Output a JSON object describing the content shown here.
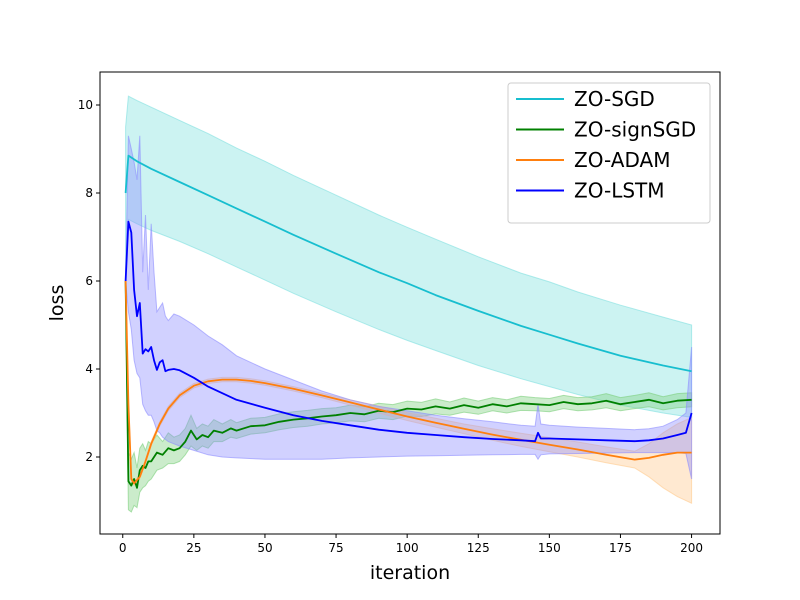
{
  "chart_data": {
    "type": "line",
    "xlabel": "iteration",
    "ylabel": "loss",
    "xlim": [
      -8,
      210
    ],
    "ylim": [
      0.25,
      10.75
    ],
    "xticks": [
      0,
      25,
      50,
      75,
      100,
      125,
      150,
      175,
      200
    ],
    "yticks": [
      2,
      4,
      6,
      8,
      10
    ],
    "legend_position": "upper-right",
    "grid": false,
    "series": [
      {
        "name": "ZO-SGD",
        "color": "#17becf",
        "band_color": "#7fe0df",
        "x": [
          1,
          2,
          5,
          10,
          20,
          30,
          40,
          50,
          60,
          75,
          90,
          100,
          110,
          125,
          140,
          150,
          160,
          175,
          190,
          200
        ],
        "values": [
          8.0,
          8.85,
          8.72,
          8.55,
          8.25,
          7.95,
          7.65,
          7.35,
          7.05,
          6.62,
          6.2,
          5.95,
          5.68,
          5.32,
          4.98,
          4.78,
          4.58,
          4.3,
          4.08,
          3.95
        ],
        "lower": [
          6.0,
          7.4,
          7.3,
          7.15,
          6.9,
          6.62,
          6.32,
          6.02,
          5.72,
          5.3,
          4.9,
          4.65,
          4.42,
          4.08,
          3.78,
          3.6,
          3.42,
          3.18,
          3.0,
          2.9
        ],
        "upper": [
          9.5,
          10.2,
          10.1,
          9.95,
          9.65,
          9.35,
          9.02,
          8.72,
          8.4,
          7.95,
          7.5,
          7.22,
          6.95,
          6.55,
          6.18,
          5.98,
          5.75,
          5.45,
          5.18,
          5.0
        ]
      },
      {
        "name": "ZO-signSGD",
        "color": "#008000",
        "band_color": "#7ccf7c",
        "x": [
          1,
          2,
          3,
          4,
          5,
          6,
          7,
          8,
          9,
          10,
          12,
          14,
          16,
          18,
          20,
          22,
          24,
          26,
          28,
          30,
          32,
          35,
          38,
          40,
          45,
          50,
          55,
          60,
          65,
          70,
          75,
          80,
          85,
          90,
          95,
          100,
          105,
          110,
          115,
          120,
          125,
          130,
          135,
          140,
          145,
          150,
          155,
          160,
          165,
          170,
          175,
          180,
          185,
          190,
          195,
          200
        ],
        "values": [
          6.0,
          1.45,
          1.35,
          1.5,
          1.3,
          1.7,
          1.8,
          1.75,
          1.9,
          1.9,
          2.1,
          2.05,
          2.2,
          2.15,
          2.2,
          2.35,
          2.6,
          2.4,
          2.5,
          2.45,
          2.6,
          2.55,
          2.65,
          2.6,
          2.7,
          2.72,
          2.8,
          2.85,
          2.88,
          2.92,
          2.95,
          3.0,
          2.97,
          3.05,
          3.02,
          3.1,
          3.08,
          3.15,
          3.1,
          3.18,
          3.12,
          3.2,
          3.15,
          3.22,
          3.2,
          3.18,
          3.25,
          3.2,
          3.22,
          3.28,
          3.2,
          3.25,
          3.3,
          3.22,
          3.28,
          3.3
        ],
        "lower": [
          6.0,
          0.8,
          0.75,
          0.9,
          0.85,
          1.2,
          1.3,
          1.35,
          1.45,
          1.5,
          1.7,
          1.75,
          1.85,
          1.85,
          1.9,
          2.05,
          2.25,
          2.15,
          2.25,
          2.2,
          2.35,
          2.35,
          2.45,
          2.42,
          2.52,
          2.55,
          2.62,
          2.67,
          2.7,
          2.75,
          2.78,
          2.82,
          2.8,
          2.88,
          2.85,
          2.93,
          2.92,
          2.98,
          2.95,
          3.02,
          2.97,
          3.05,
          3.0,
          3.06,
          3.05,
          3.03,
          3.1,
          3.05,
          3.07,
          3.12,
          3.05,
          3.1,
          3.14,
          3.07,
          3.12,
          3.14
        ],
        "upper": [
          6.0,
          2.1,
          1.95,
          2.1,
          1.75,
          2.2,
          2.3,
          2.15,
          2.35,
          2.3,
          2.5,
          2.35,
          2.55,
          2.45,
          2.5,
          2.65,
          2.95,
          2.65,
          2.75,
          2.7,
          2.85,
          2.75,
          2.85,
          2.78,
          2.88,
          2.9,
          2.98,
          3.03,
          3.06,
          3.1,
          3.12,
          3.18,
          3.14,
          3.22,
          3.19,
          3.27,
          3.24,
          3.32,
          3.25,
          3.34,
          3.27,
          3.35,
          3.3,
          3.38,
          3.35,
          3.33,
          3.4,
          3.35,
          3.37,
          3.44,
          3.35,
          3.4,
          3.46,
          3.37,
          3.44,
          3.46
        ]
      },
      {
        "name": "ZO-ADAM",
        "color": "#ff7f0e",
        "band_color": "#ffc98c",
        "x": [
          1,
          2,
          3,
          4,
          6,
          8,
          10,
          13,
          16,
          20,
          25,
          30,
          35,
          40,
          45,
          50,
          60,
          70,
          80,
          90,
          100,
          110,
          120,
          130,
          140,
          150,
          160,
          170,
          180,
          185,
          190,
          195,
          200
        ],
        "values": [
          6.0,
          3.2,
          1.5,
          1.4,
          1.55,
          1.9,
          2.3,
          2.75,
          3.1,
          3.4,
          3.62,
          3.72,
          3.76,
          3.76,
          3.73,
          3.68,
          3.55,
          3.4,
          3.24,
          3.08,
          2.92,
          2.78,
          2.64,
          2.51,
          2.39,
          2.28,
          2.17,
          2.05,
          1.94,
          1.98,
          2.05,
          2.1,
          2.1
        ],
        "lower": [
          6.0,
          3.0,
          1.45,
          1.35,
          1.5,
          1.85,
          2.25,
          2.7,
          3.05,
          3.35,
          3.57,
          3.67,
          3.71,
          3.71,
          3.68,
          3.63,
          3.5,
          3.35,
          3.18,
          3.0,
          2.83,
          2.68,
          2.53,
          2.38,
          2.24,
          2.12,
          2.0,
          1.87,
          1.75,
          1.55,
          1.3,
          1.1,
          0.95
        ],
        "upper": [
          6.0,
          3.4,
          1.55,
          1.45,
          1.6,
          1.95,
          2.35,
          2.8,
          3.15,
          3.45,
          3.67,
          3.77,
          3.81,
          3.81,
          3.78,
          3.73,
          3.6,
          3.45,
          3.3,
          3.16,
          3.01,
          2.88,
          2.75,
          2.64,
          2.54,
          2.44,
          2.34,
          2.23,
          2.13,
          2.3,
          2.55,
          2.75,
          2.9
        ]
      },
      {
        "name": "ZO-LSTM",
        "color": "#0000ff",
        "band_color": "#8c8cff",
        "x": [
          1,
          2,
          3,
          4,
          5,
          6,
          7,
          8,
          9,
          10,
          11,
          12,
          13,
          14,
          15,
          16,
          18,
          20,
          25,
          30,
          35,
          40,
          50,
          60,
          70,
          80,
          90,
          100,
          110,
          120,
          130,
          140,
          145,
          146,
          147,
          150,
          160,
          170,
          180,
          185,
          190,
          195,
          198,
          200
        ],
        "values": [
          6.0,
          7.35,
          7.1,
          5.8,
          5.2,
          5.5,
          4.35,
          4.45,
          4.4,
          4.5,
          4.2,
          3.98,
          4.15,
          4.2,
          3.95,
          3.98,
          4.0,
          3.97,
          3.8,
          3.6,
          3.45,
          3.3,
          3.12,
          2.95,
          2.82,
          2.72,
          2.62,
          2.55,
          2.5,
          2.45,
          2.41,
          2.38,
          2.36,
          2.55,
          2.42,
          2.42,
          2.4,
          2.38,
          2.36,
          2.38,
          2.42,
          2.5,
          2.55,
          3.0
        ],
        "lower": [
          6.0,
          5.3,
          4.9,
          4.2,
          3.9,
          3.8,
          3.2,
          3.05,
          2.95,
          2.95,
          2.8,
          2.6,
          2.55,
          2.45,
          2.4,
          2.35,
          2.3,
          2.25,
          2.15,
          2.05,
          2.0,
          1.98,
          1.95,
          1.95,
          1.95,
          1.98,
          2.0,
          2.02,
          2.03,
          2.04,
          2.05,
          2.06,
          2.06,
          1.95,
          2.05,
          2.07,
          2.08,
          2.09,
          2.1,
          2.1,
          2.1,
          2.1,
          2.08,
          1.5
        ],
        "upper": [
          6.0,
          9.3,
          9.0,
          8.7,
          8.3,
          9.3,
          6.2,
          7.5,
          5.8,
          7.3,
          6.2,
          5.3,
          5.4,
          5.5,
          5.2,
          5.1,
          5.25,
          5.2,
          5.0,
          4.75,
          4.55,
          4.3,
          4.0,
          3.75,
          3.5,
          3.3,
          3.15,
          3.05,
          2.95,
          2.87,
          2.8,
          2.72,
          2.7,
          3.2,
          2.75,
          2.72,
          2.68,
          2.65,
          2.62,
          2.64,
          2.7,
          2.85,
          3.0,
          4.5
        ]
      }
    ]
  }
}
